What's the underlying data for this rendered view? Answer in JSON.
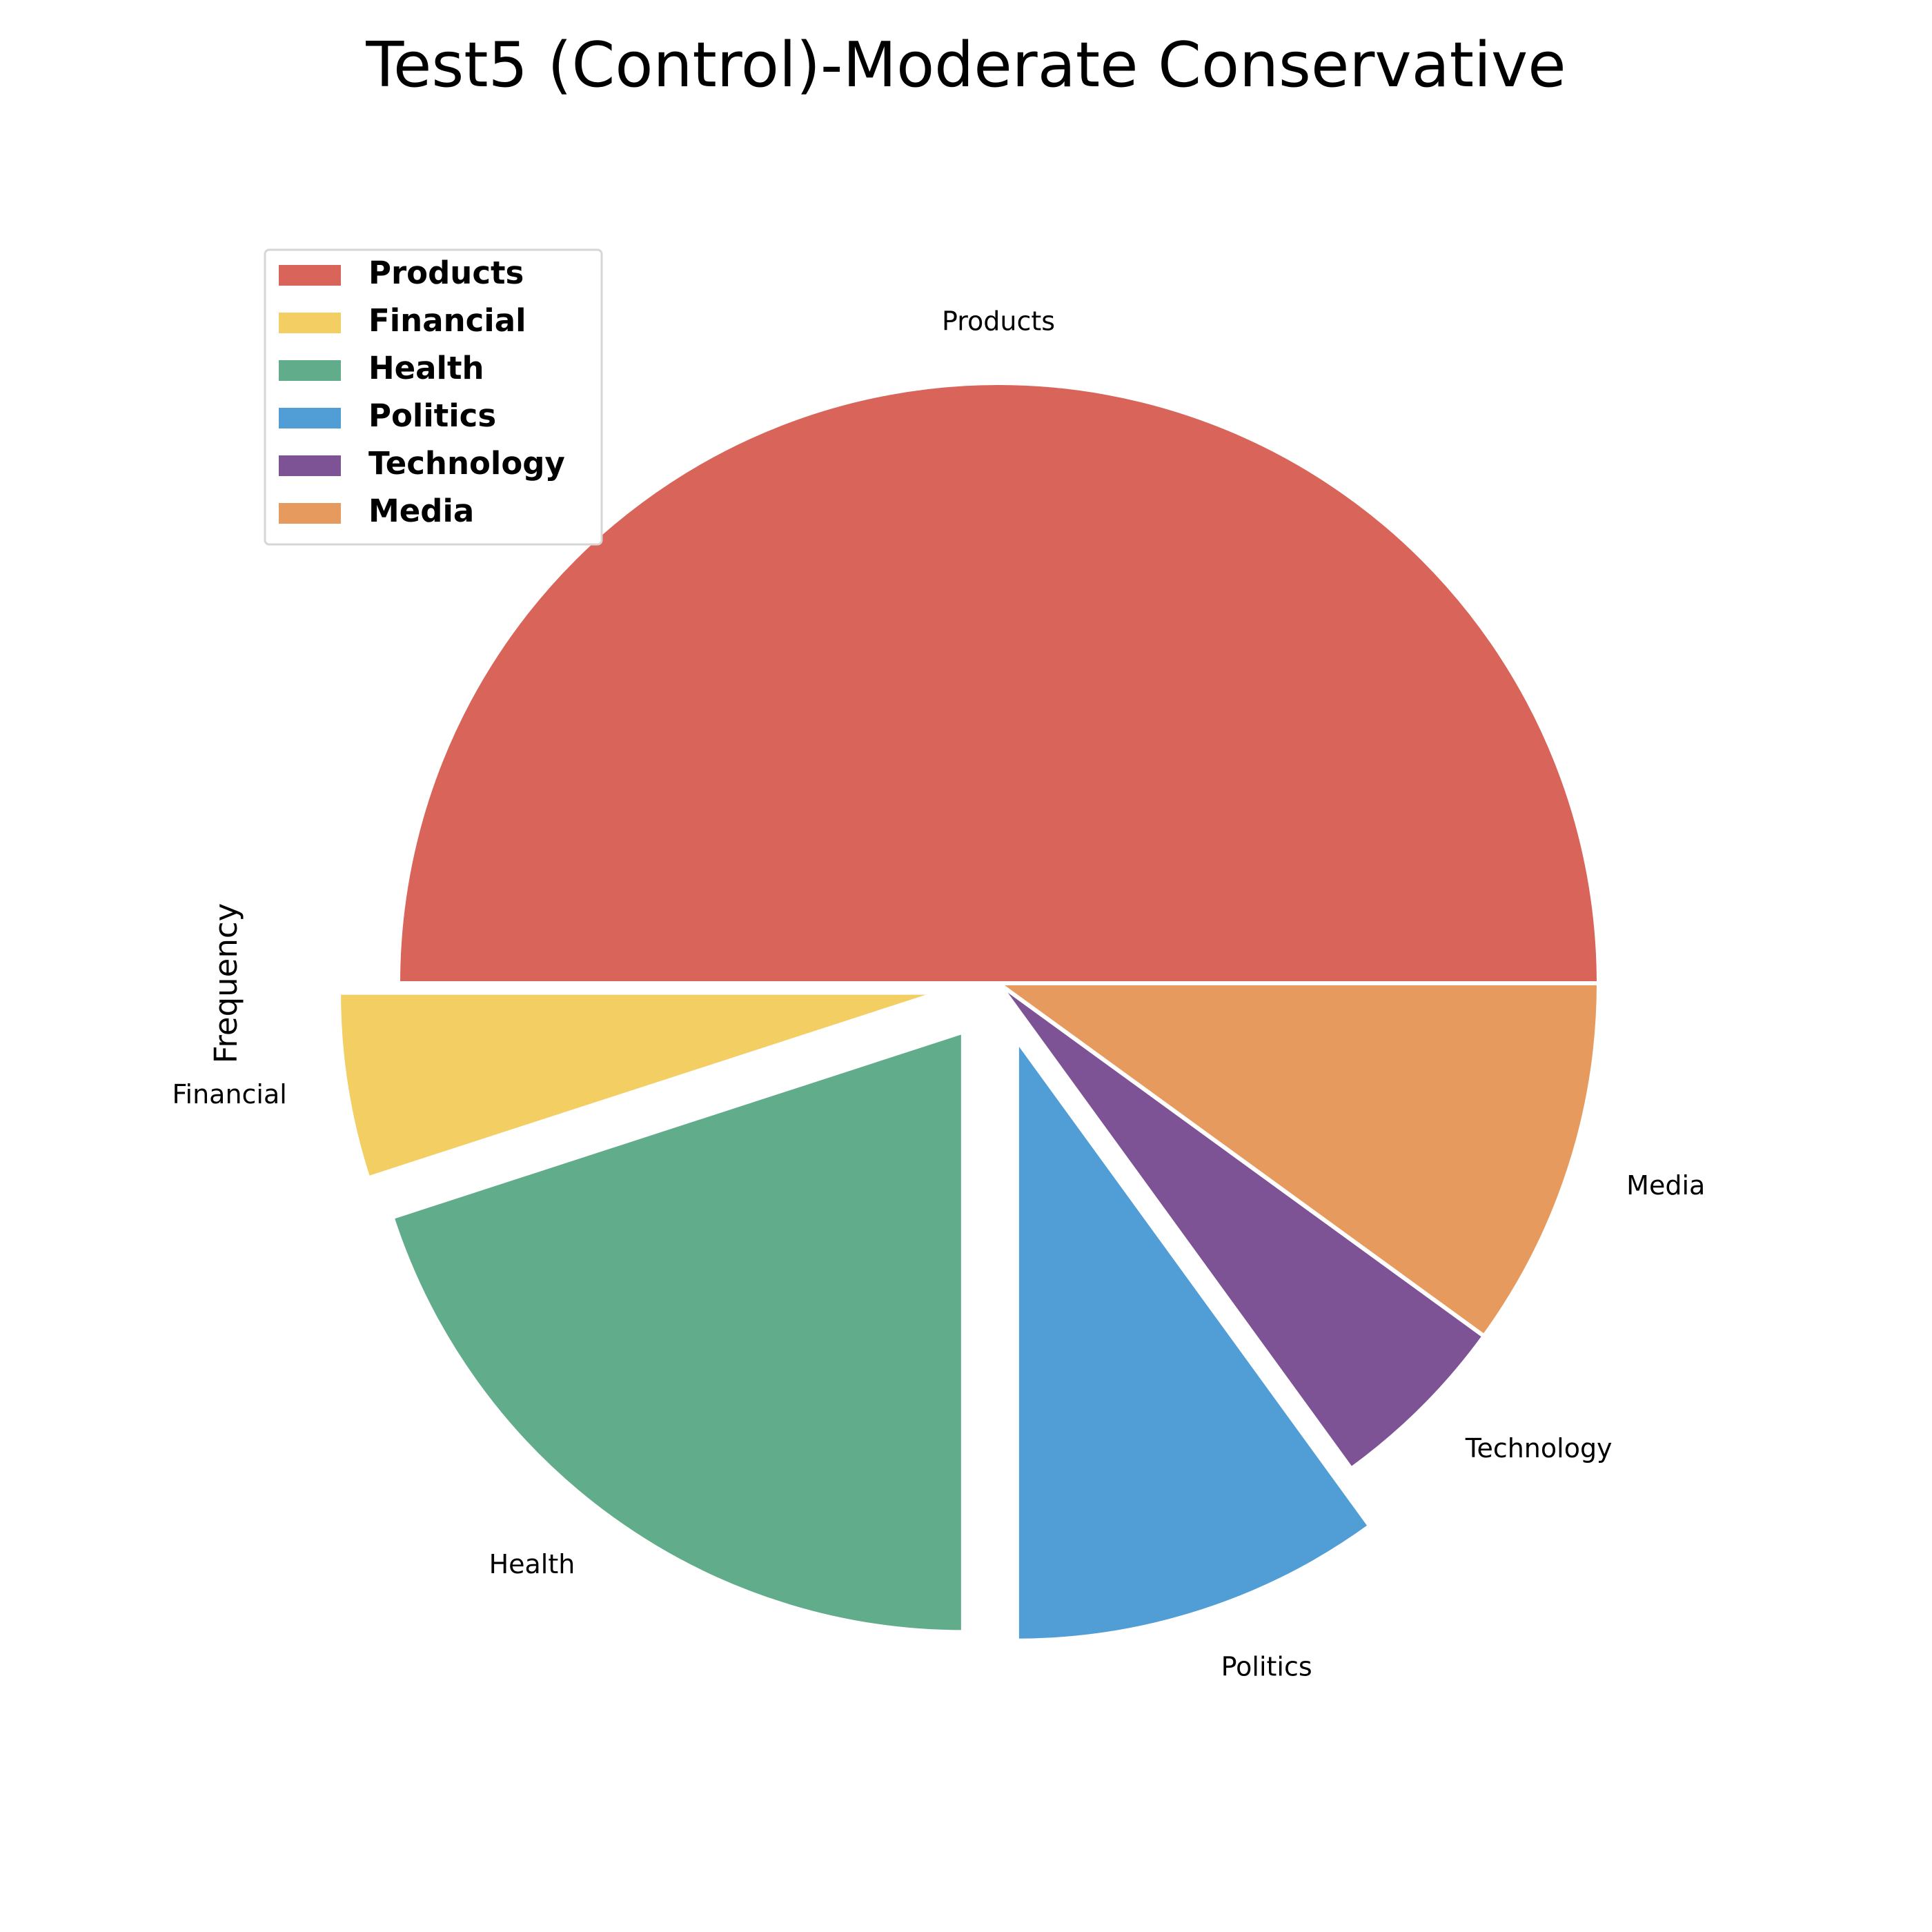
{
  "chart_data": {
    "type": "pie",
    "title": "Test5 (Control)-Moderate Conservative",
    "ylabel": "Frequency",
    "legend_position": "upper-left",
    "slices": [
      {
        "label": "Products",
        "value": 50,
        "color": "#d9645a",
        "exploded": false
      },
      {
        "label": "Financial",
        "value": 5,
        "color": "#f3ce63",
        "exploded": true
      },
      {
        "label": "Health",
        "value": 20,
        "color": "#61ac8a",
        "exploded": true
      },
      {
        "label": "Politics",
        "value": 10,
        "color": "#519dd5",
        "exploded": true
      },
      {
        "label": "Technology",
        "value": 5,
        "color": "#7d5396",
        "exploded": false
      },
      {
        "label": "Media",
        "value": 10,
        "color": "#e79a5e",
        "exploded": false
      }
    ]
  }
}
